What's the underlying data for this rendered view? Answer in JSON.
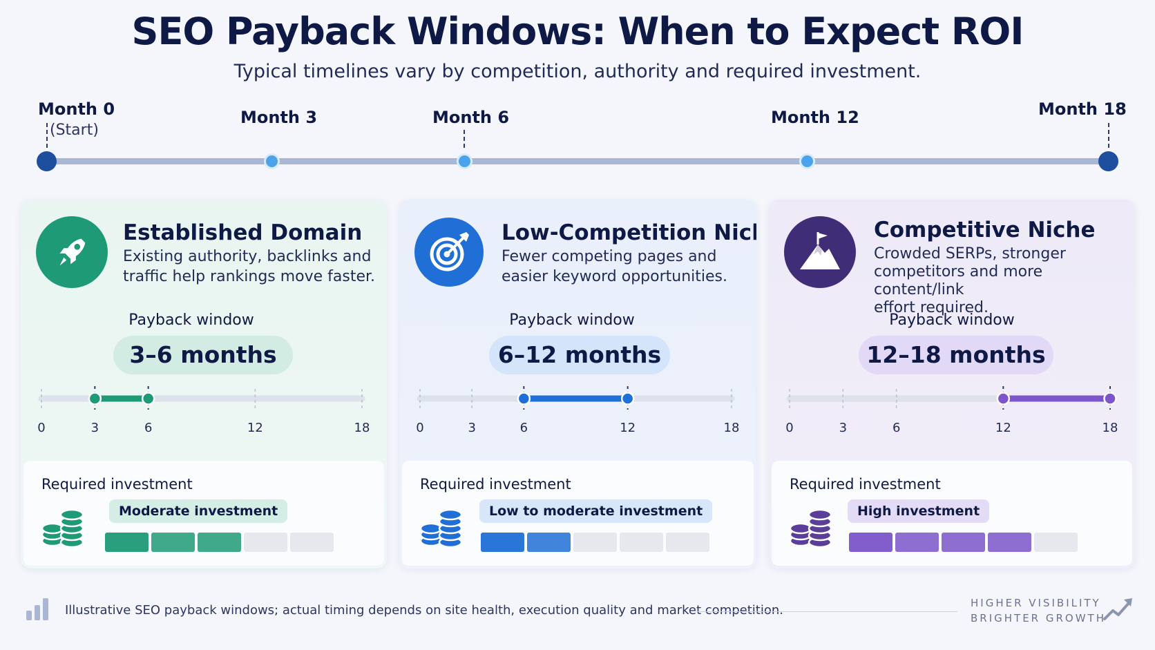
{
  "header": {
    "title": "SEO Payback Windows: When to Expect ROI",
    "subtitle": "Typical timelines vary by competition, authority and required investment."
  },
  "timeline": {
    "start_label": "Month 0",
    "start_sub": "(Start)",
    "m3": "Month 3",
    "m6": "Month 6",
    "m12": "Month 12",
    "m18": "Month 18",
    "months": [
      0,
      3,
      6,
      12,
      18
    ]
  },
  "scale_ticks": [
    "0",
    "3",
    "6",
    "12",
    "18"
  ],
  "cards": [
    {
      "title": "Established Domain",
      "desc_line1": "Existing authority, backlinks and",
      "desc_line2": "traffic help rankings move faster.",
      "desc_line3": "",
      "icon": "rocket-icon",
      "payback_label": "Payback window",
      "payback": "3–6 months",
      "range": [
        3,
        6
      ],
      "investment_label": "Required investment",
      "investment": "Moderate investment",
      "investment_level": 3,
      "investment_max": 5,
      "accent": "#1f9a76",
      "pill_bg": "#d2ece4",
      "badge_bg": "#d5eee5"
    },
    {
      "title": "Low-Competition Niche",
      "desc_line1": "Fewer competing pages and",
      "desc_line2": "easier keyword opportunities.",
      "desc_line3": "",
      "icon": "target-icon",
      "payback_label": "Payback window",
      "payback": "6–12 months",
      "range": [
        6,
        12
      ],
      "investment_label": "Required investment",
      "investment": "Low to moderate investment",
      "investment_level": 2,
      "investment_max": 5,
      "accent": "#1f6fd6",
      "pill_bg": "#d4e4fa",
      "badge_bg": "#d8e6fa"
    },
    {
      "title": "Competitive Niche",
      "desc_line1": "Crowded SERPs, stronger",
      "desc_line2": "competitors and more content/link",
      "desc_line3": "effort required.",
      "icon": "mountain-flag-icon",
      "payback_label": "Payback window",
      "payback": "12–18 months",
      "range": [
        12,
        18
      ],
      "investment_label": "Required investment",
      "investment": "High investment",
      "investment_level": 4,
      "investment_max": 5,
      "accent": "#7b55c9",
      "pill_bg": "#e2d9f6",
      "badge_bg": "#e4dcf6"
    }
  ],
  "footer": {
    "note": "Illustrative SEO payback windows; actual timing depends on site health, execution quality and market competition.",
    "brand_line1": "HIGHER VISIBILITY",
    "brand_line2": "BRIGHTER GROWTH"
  }
}
